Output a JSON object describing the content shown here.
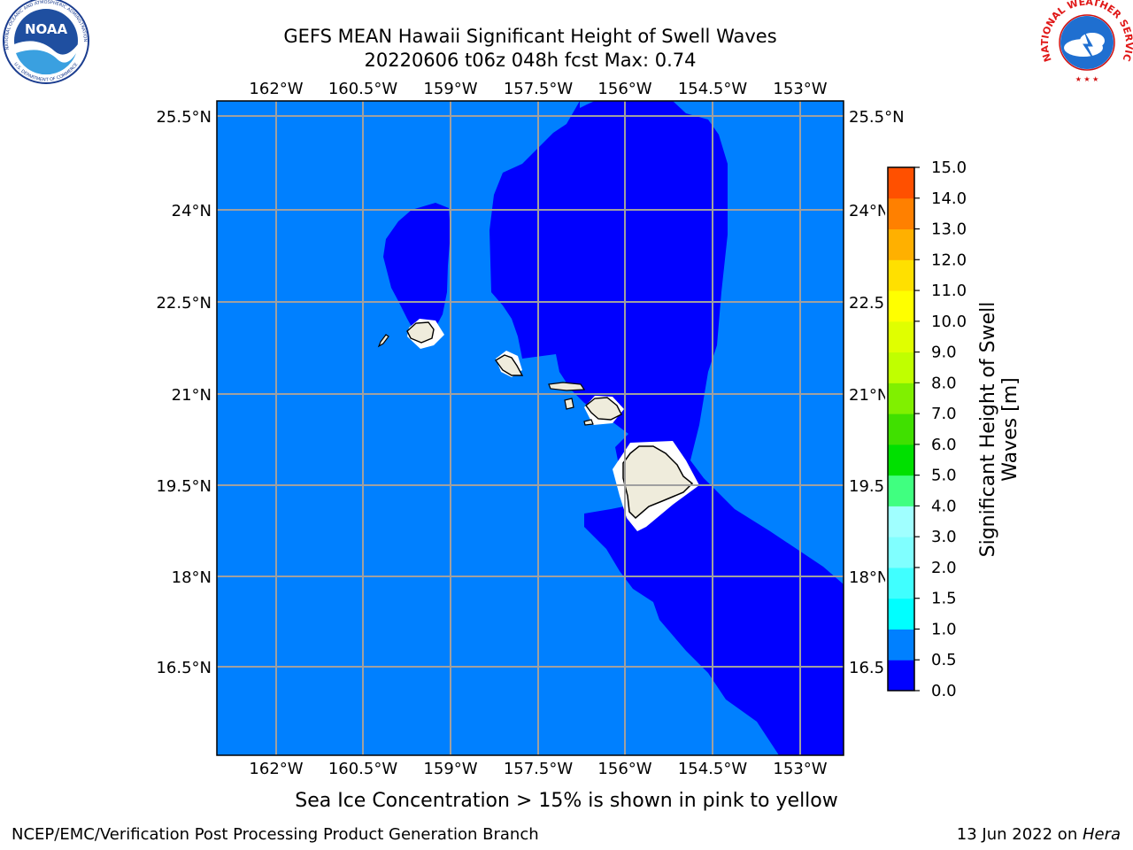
{
  "title": {
    "line1": "GEFS MEAN Hawaii Significant Height of Swell Waves",
    "line2": "20220606 t06z 048h fcst   Max: 0.74"
  },
  "logos": {
    "left": {
      "text": "NOAA",
      "ring_top": "NATIONAL OCEANIC AND ATMOSPHERIC ADMINISTRATION",
      "ring_bottom": "U.S. DEPARTMENT OF COMMERCE",
      "icon": "noaa-logo"
    },
    "right": {
      "ring_text": "NATIONAL WEATHER SERVICE",
      "icon": "nws-logo"
    }
  },
  "map": {
    "lon_labels": [
      "162°W",
      "160.5°W",
      "159°W",
      "157.5°W",
      "156°W",
      "154.5°W",
      "153°W"
    ],
    "lat_labels": [
      "25.5°N",
      "24°N",
      "22.5°N",
      "21°N",
      "19.5°N",
      "18°N",
      "16.5°N"
    ],
    "colors": {
      "ocean_0_05": "#0000ff",
      "ocean_05_10": "#0080ff",
      "land": "#efecdc",
      "gridline": "#a0a0a0"
    }
  },
  "colorbar": {
    "label_line1": "Significant Height of Swell",
    "label_line2": "Waves [m]",
    "ticks": [
      "0.0",
      "0.5",
      "1.0",
      "1.5",
      "2.0",
      "3.0",
      "4.0",
      "5.0",
      "6.0",
      "7.0",
      "8.0",
      "9.0",
      "10.0",
      "11.0",
      "12.0",
      "13.0",
      "14.0",
      "15.0"
    ],
    "colors": [
      "#0000ff",
      "#0080ff",
      "#00ffff",
      "#40ffff",
      "#80ffff",
      "#a0ffff",
      "#40ff80",
      "#00e000",
      "#40e000",
      "#80f000",
      "#c0ff00",
      "#e0ff00",
      "#ffff00",
      "#ffe000",
      "#ffb000",
      "#ff8000",
      "#ff5000",
      "#ff2000",
      "#ff0000"
    ]
  },
  "caption": "Sea Ice Concentration > 15% is shown in pink to yellow",
  "footer": {
    "left": "NCEP/EMC/Verification Post Processing Product Generation Branch",
    "right_prefix": "13 Jun 2022 on ",
    "right_host": "Hera"
  }
}
